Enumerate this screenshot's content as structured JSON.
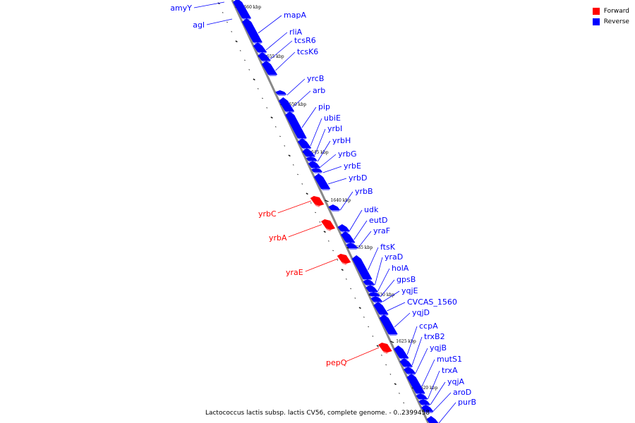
{
  "legend": [
    {
      "label": "Forward",
      "color": "#ff0000"
    },
    {
      "label": "Reverse",
      "color": "#0000ff"
    }
  ],
  "caption": "Lactococcus lactis subsp. lactis CV56, complete genome. - 0..2399458",
  "colors": {
    "forward": "#ff0000",
    "reverse": "#0000ff",
    "axis": "#888888"
  },
  "kbp_ticks": [
    "1660 kbp",
    "1655 kbp",
    "1650 kbp",
    "1645 kbp",
    "1640 kbp",
    "1635 kbp",
    "1630 kbp",
    "1625 kbp",
    "1620 kbp"
  ],
  "reverse_genes": [
    "amyY",
    "agl",
    "mapA",
    "rliA",
    "tcsR6",
    "tcsK6",
    "yrcB",
    "arb",
    "pip",
    "ubiE",
    "yrbI",
    "yrbH",
    "yrbG",
    "yrbE",
    "yrbD",
    "yrbB",
    "udk",
    "eutD",
    "yraF",
    "ftsK",
    "yraD",
    "holA",
    "gpsB",
    "yqjE",
    "CVCAS_1560",
    "yqjD",
    "ccpA",
    "trxB2",
    "yqjB",
    "mutS1",
    "trxA",
    "yqjA",
    "aroD",
    "purB"
  ],
  "forward_genes": [
    "yrbC",
    "yrbA",
    "yraE",
    "pepQ"
  ]
}
